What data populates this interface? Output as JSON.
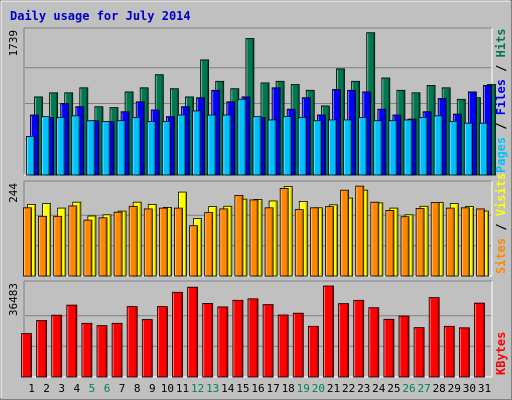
{
  "title": "Daily usage for July 2014",
  "colors": {
    "title": "#0000cc",
    "hits": "#007850",
    "files": "#0000ff",
    "pages": "#00c0ff",
    "visits": "#ffff00",
    "sites": "#ff8800",
    "kbytes": "#ff0000",
    "weekend_day_label": "#008060",
    "panel_bg": "#c0c0c0",
    "grid": "#808080"
  },
  "chart_data": [
    {
      "type": "bar",
      "name": "hits-files-pages",
      "scale_label": "1739",
      "ymax": 1739,
      "legend": [
        {
          "label": "Pages",
          "color": "#00c0ff"
        },
        {
          "label": "Files",
          "color": "#0000ff"
        },
        {
          "label": "Hits",
          "color": "#007850"
        }
      ],
      "x": [
        1,
        2,
        3,
        4,
        5,
        6,
        7,
        8,
        9,
        10,
        11,
        12,
        13,
        14,
        15,
        16,
        17,
        18,
        19,
        20,
        21,
        22,
        23,
        24,
        25,
        26,
        27,
        28,
        29,
        30,
        31
      ],
      "series": [
        {
          "name": "Hits",
          "values": [
            950,
            1000,
            1000,
            1060,
            830,
            820,
            1010,
            1060,
            1220,
            1050,
            950,
            1400,
            1140,
            1050,
            1660,
            1120,
            1140,
            1100,
            1030,
            840,
            1290,
            1140,
            1730,
            1180,
            1030,
            1000,
            1090,
            1060,
            920,
            940,
            1100
          ]
        },
        {
          "name": "Files",
          "values": [
            730,
            700,
            870,
            830,
            660,
            650,
            770,
            890,
            790,
            710,
            830,
            940,
            1030,
            890,
            950,
            700,
            1060,
            800,
            940,
            730,
            1040,
            1030,
            1010,
            800,
            730,
            680,
            770,
            930,
            740,
            1010,
            1090
          ]
        },
        {
          "name": "Pages",
          "values": [
            470,
            710,
            700,
            720,
            660,
            650,
            660,
            700,
            650,
            650,
            730,
            780,
            730,
            730,
            920,
            710,
            670,
            710,
            700,
            660,
            670,
            670,
            700,
            660,
            660,
            670,
            700,
            720,
            650,
            630,
            630
          ]
        }
      ]
    },
    {
      "type": "bar",
      "name": "visits-sites",
      "scale_label": "244",
      "ymax": 244,
      "legend": [
        {
          "label": "Sites",
          "color": "#ff8800"
        },
        {
          "label": "Visits",
          "color": "#ffff00"
        }
      ],
      "x": [
        1,
        2,
        3,
        4,
        5,
        6,
        7,
        8,
        9,
        10,
        11,
        12,
        13,
        14,
        15,
        16,
        17,
        18,
        19,
        20,
        21,
        22,
        23,
        24,
        25,
        26,
        27,
        28,
        29,
        30,
        31
      ],
      "series": [
        {
          "name": "Visits",
          "values": [
            192,
            194,
            182,
            198,
            161,
            164,
            174,
            198,
            192,
            184,
            225,
            154,
            186,
            187,
            206,
            205,
            201,
            240,
            200,
            183,
            191,
            209,
            230,
            196,
            182,
            164,
            187,
            197,
            194,
            186,
            174
          ]
        },
        {
          "name": "Sites",
          "values": [
            183,
            160,
            160,
            188,
            150,
            156,
            171,
            187,
            180,
            182,
            182,
            135,
            170,
            180,
            216,
            204,
            183,
            235,
            178,
            183,
            186,
            230,
            241,
            198,
            176,
            159,
            181,
            197,
            182,
            183,
            180
          ]
        }
      ]
    },
    {
      "type": "bar",
      "name": "kbytes",
      "scale_label": "36483",
      "ymax": 36483,
      "legend": [
        {
          "label": "KBytes",
          "color": "#ff0000"
        }
      ],
      "x": [
        1,
        2,
        3,
        4,
        5,
        6,
        7,
        8,
        9,
        10,
        11,
        12,
        13,
        14,
        15,
        16,
        17,
        18,
        19,
        20,
        21,
        22,
        23,
        24,
        25,
        26,
        27,
        28,
        29,
        30,
        31
      ],
      "series": [
        {
          "name": "KBytes",
          "values": [
            17200,
            22400,
            24500,
            28500,
            21300,
            20400,
            21300,
            27900,
            22800,
            27900,
            33600,
            35600,
            29200,
            27800,
            30400,
            31000,
            28700,
            24600,
            25300,
            20100,
            36100,
            29100,
            30400,
            27500,
            22900,
            24200,
            19600,
            31500,
            20100,
            19500,
            29300
          ]
        }
      ]
    }
  ]
}
